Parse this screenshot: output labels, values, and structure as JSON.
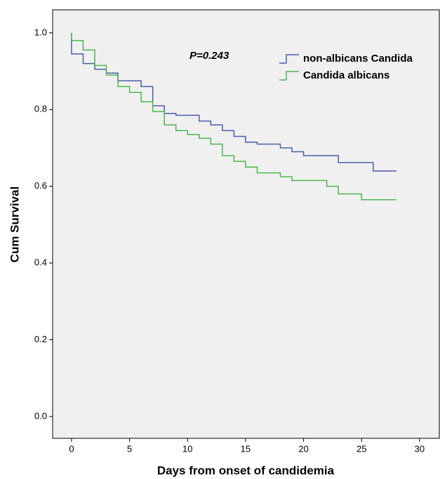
{
  "chart_data": {
    "type": "step",
    "x_label": "Days from onset of candidemia",
    "y_label": "Cum Survival",
    "annotation": "P=0.243",
    "xlim": [
      -1.63,
      31.7
    ],
    "ylim": [
      -0.057,
      1.06
    ],
    "xticks": [
      0,
      5,
      10,
      15,
      20,
      25,
      30
    ],
    "yticks": [
      {
        "value": 0,
        "label": "0.0"
      },
      {
        "value": 0.2,
        "label": "0.2"
      },
      {
        "value": 0.4,
        "label": "0.4"
      },
      {
        "value": 0.6,
        "label": "0.6"
      },
      {
        "value": 0.8,
        "label": "0.8"
      },
      {
        "value": 1,
        "label": "1.0"
      }
    ],
    "series": [
      {
        "name": "non-albicans Candida",
        "color": "#4a5ea8",
        "x": [
          0,
          0,
          1,
          2,
          3,
          4,
          6,
          7,
          8,
          9,
          11,
          12,
          13,
          14,
          15,
          16,
          18,
          19,
          20,
          23,
          26,
          28
        ],
        "values": [
          1.0,
          0.945,
          0.92,
          0.905,
          0.895,
          0.875,
          0.86,
          0.81,
          0.79,
          0.785,
          0.77,
          0.76,
          0.745,
          0.73,
          0.715,
          0.71,
          0.7,
          0.69,
          0.68,
          0.662,
          0.64,
          0.64
        ]
      },
      {
        "name": "Candida albicans",
        "color": "#4bb84b",
        "x": [
          0,
          0,
          1,
          2,
          3,
          4,
          5,
          6,
          7,
          8,
          9,
          10,
          11,
          12,
          13,
          14,
          15,
          16,
          18,
          19,
          22,
          23,
          25,
          28
        ],
        "values": [
          1.0,
          0.98,
          0.955,
          0.915,
          0.89,
          0.86,
          0.845,
          0.82,
          0.795,
          0.76,
          0.745,
          0.735,
          0.725,
          0.71,
          0.68,
          0.665,
          0.65,
          0.635,
          0.625,
          0.615,
          0.6,
          0.58,
          0.565,
          0.565
        ]
      }
    ]
  }
}
